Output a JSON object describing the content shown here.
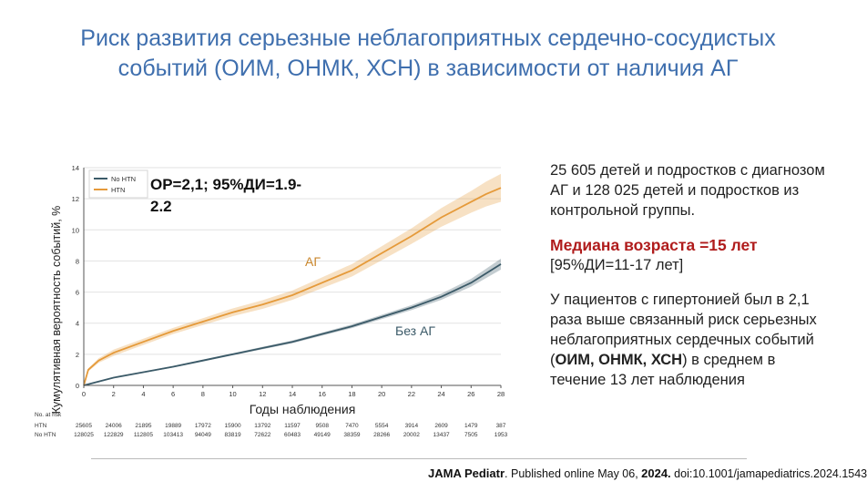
{
  "slide": {
    "title_line1": "Риск развития серьезные неблагоприятных сердечно-сосудистых",
    "title_line2": "событий (ОИМ, ОНМК, ХСН) в зависимости от наличия АГ"
  },
  "right_panel": {
    "cohort": "25 605 детей и подростков с диагнозом АГ  и 128 025 детей и подростков из контрольной группы.",
    "median_age": "Медиана возраста =15 лет",
    "median_ci": "[95%ДИ=11-17 лет]",
    "finding_part1": "У пациентов с гипертонией был в 2,1 раза выше связанный риск серьезных неблагоприятных сердечных событий (",
    "finding_bold": "ОИМ, ОНМК, ХСН",
    "finding_part2": ") в среднем в течение 13 лет наблюдения"
  },
  "citation": {
    "journal": "JAMA Pediatr",
    "text1": ". Published online  May 06, ",
    "year": "2024.",
    "text2": " doi:10.1001/jamapediatrics.2024.1543"
  },
  "colors": {
    "title": "#3f6fae",
    "htn": "#e59a3a",
    "no_htn": "#3b5a68",
    "median": "#b01c1c"
  },
  "chart_data": {
    "type": "line",
    "title": "",
    "xlabel": "Годы наблюдения",
    "ylabel": "Кумулятивная вероятность событий, %",
    "xlim": [
      0,
      28
    ],
    "ylim": [
      0,
      14
    ],
    "x_ticks": [
      0,
      2,
      4,
      6,
      8,
      10,
      12,
      14,
      16,
      18,
      20,
      22,
      24,
      26,
      28
    ],
    "y_ticks": [
      0,
      2,
      4,
      6,
      8,
      10,
      12,
      14
    ],
    "grid": "horizontal",
    "legend": {
      "position": "top-left",
      "entries": [
        {
          "label": "No HTN",
          "color": "#3b5a68"
        },
        {
          "label": "HTN",
          "color": "#e59a3a"
        }
      ]
    },
    "annotation_stats": "ОР=2,1; 95%ДИ=1.9-2.2",
    "series": [
      {
        "name": "HTN",
        "label_on_chart": "АГ",
        "color": "#e59a3a",
        "x": [
          0,
          0.3,
          1,
          2,
          4,
          6,
          8,
          10,
          12,
          14,
          16,
          18,
          20,
          22,
          24,
          26,
          27,
          28
        ],
        "y": [
          0,
          1.0,
          1.6,
          2.1,
          2.8,
          3.5,
          4.1,
          4.7,
          5.2,
          5.8,
          6.6,
          7.4,
          8.5,
          9.6,
          10.8,
          11.8,
          12.3,
          12.7
        ],
        "band": [
          0,
          0.1,
          0.15,
          0.2,
          0.2,
          0.2,
          0.22,
          0.25,
          0.28,
          0.3,
          0.35,
          0.4,
          0.45,
          0.5,
          0.6,
          0.7,
          0.8,
          0.9
        ]
      },
      {
        "name": "No HTN",
        "label_on_chart": "Без АГ",
        "color": "#3b5a68",
        "x": [
          0,
          1,
          2,
          4,
          6,
          8,
          10,
          12,
          14,
          16,
          18,
          20,
          22,
          24,
          26,
          27,
          28
        ],
        "y": [
          0,
          0.25,
          0.5,
          0.85,
          1.2,
          1.6,
          2.0,
          2.4,
          2.8,
          3.3,
          3.8,
          4.4,
          5.0,
          5.7,
          6.6,
          7.2,
          7.8
        ],
        "band": [
          0,
          0.02,
          0.03,
          0.04,
          0.05,
          0.06,
          0.07,
          0.08,
          0.09,
          0.1,
          0.12,
          0.14,
          0.16,
          0.2,
          0.25,
          0.3,
          0.35
        ]
      }
    ],
    "at_risk": {
      "header": "No. at risk",
      "x": [
        0,
        2,
        4,
        6,
        8,
        10,
        12,
        14,
        16,
        18,
        20,
        22,
        24,
        26,
        28
      ],
      "rows": [
        {
          "label": "HTN",
          "values": [
            "25605",
            "24006",
            "21895",
            "19889",
            "17972",
            "15900",
            "13792",
            "11597",
            "9508",
            "7470",
            "5554",
            "3914",
            "2609",
            "1479",
            "387"
          ]
        },
        {
          "label": "No HTN",
          "values": [
            "128025",
            "122829",
            "112805",
            "103413",
            "94049",
            "83819",
            "72622",
            "60483",
            "49149",
            "38359",
            "28266",
            "20002",
            "13437",
            "7505",
            "1953"
          ]
        }
      ]
    }
  }
}
